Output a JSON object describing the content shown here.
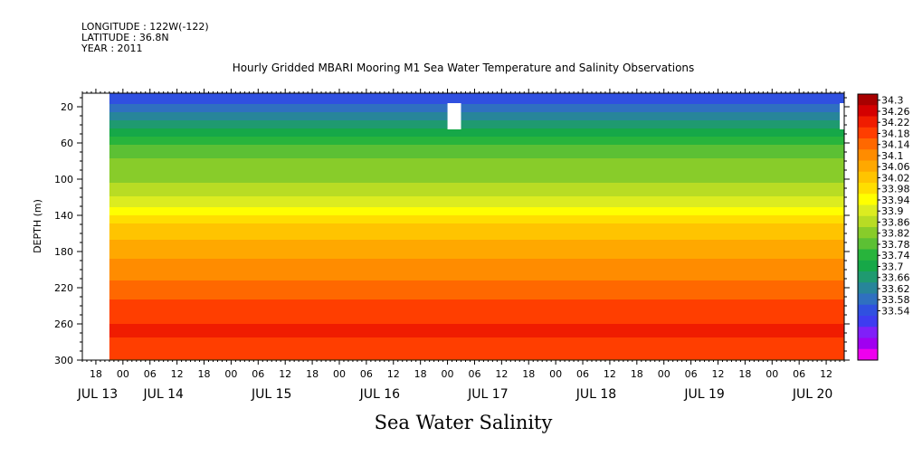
{
  "header": {
    "longitude": "LONGITUDE : 122W(-122)",
    "latitude": "LATITUDE : 36.8N",
    "year": "YEAR : 2011"
  },
  "chart_data": {
    "type": "heatmap",
    "title": "Hourly Gridded MBARI Mooring M1 Sea Water Temperature and Salinity Observations",
    "variable_label": "Sea Water Salinity",
    "ylabel": "DEPTH (m)",
    "y_reversed": true,
    "ylim": [
      300,
      5
    ],
    "y_ticks": [
      20,
      60,
      100,
      140,
      180,
      220,
      260,
      300
    ],
    "x_start": "JUL 13 15:00",
    "x_end": "JUL 20 16:00",
    "x_hour_ticks": [
      "18",
      "00",
      "06",
      "12",
      "18",
      "00",
      "06",
      "12",
      "18",
      "00",
      "06",
      "12",
      "18",
      "00",
      "06",
      "12",
      "18",
      "00",
      "06",
      "12",
      "18",
      "00",
      "06",
      "12",
      "18",
      "00",
      "06",
      "12",
      "18",
      "00",
      "06",
      "12",
      "18",
      "00",
      "06",
      "12",
      "18",
      "00",
      "06",
      "12"
    ],
    "x_day_labels": [
      "JUL 13",
      "JUL 14",
      "JUL 15",
      "JUL 16",
      "JUL 17",
      "JUL 18",
      "JUL 19",
      "JUL 20"
    ],
    "colorbar_levels": [
      "34.3",
      "34.26",
      "34.22",
      "34.18",
      "34.14",
      "34.1",
      "34.06",
      "34.02",
      "33.98",
      "33.94",
      "33.9",
      "33.86",
      "33.82",
      "33.78",
      "33.74",
      "33.7",
      "33.66",
      "33.62",
      "33.58",
      "33.54"
    ],
    "palette": [
      "#ee00ee",
      "#a000f0",
      "#8020f8",
      "#3e3cf0",
      "#3050e0",
      "#2f70c0",
      "#27859a",
      "#1f9a70",
      "#16a848",
      "#28b43c",
      "#5cc034",
      "#88cc2a",
      "#b8dc24",
      "#dcec20",
      "#ffff00",
      "#ffde00",
      "#ffc400",
      "#ffa800",
      "#ff8c00",
      "#ff6800",
      "#ff3e00",
      "#f01c00",
      "#d40000",
      "#a80000"
    ],
    "no_data_regions": [
      {
        "from": "JUL 13 15:00",
        "to": "JUL 13 21:00",
        "depth_top": 5,
        "depth_bottom": 300
      },
      {
        "from": "JUL 17 00:00",
        "to": "JUL 17 03:00",
        "depth_top": 16,
        "depth_bottom": 45
      },
      {
        "from": "JUL 20 15:00",
        "to": "JUL 20 16:00",
        "depth_top": 16,
        "depth_bottom": 45
      }
    ],
    "depth_profile": [
      {
        "depth": 10,
        "salinity": 33.68
      },
      {
        "depth": 30,
        "salinity": 33.74
      },
      {
        "depth": 50,
        "salinity": 33.82
      },
      {
        "depth": 70,
        "salinity": 33.88
      },
      {
        "depth": 100,
        "salinity": 33.91
      },
      {
        "depth": 130,
        "salinity": 33.98
      },
      {
        "depth": 150,
        "salinity": 34.05
      },
      {
        "depth": 180,
        "salinity": 34.1
      },
      {
        "depth": 220,
        "salinity": 34.15
      },
      {
        "depth": 250,
        "salinity": 34.2
      },
      {
        "depth": 270,
        "salinity": 34.21
      },
      {
        "depth": 300,
        "salinity": 34.17
      }
    ]
  }
}
